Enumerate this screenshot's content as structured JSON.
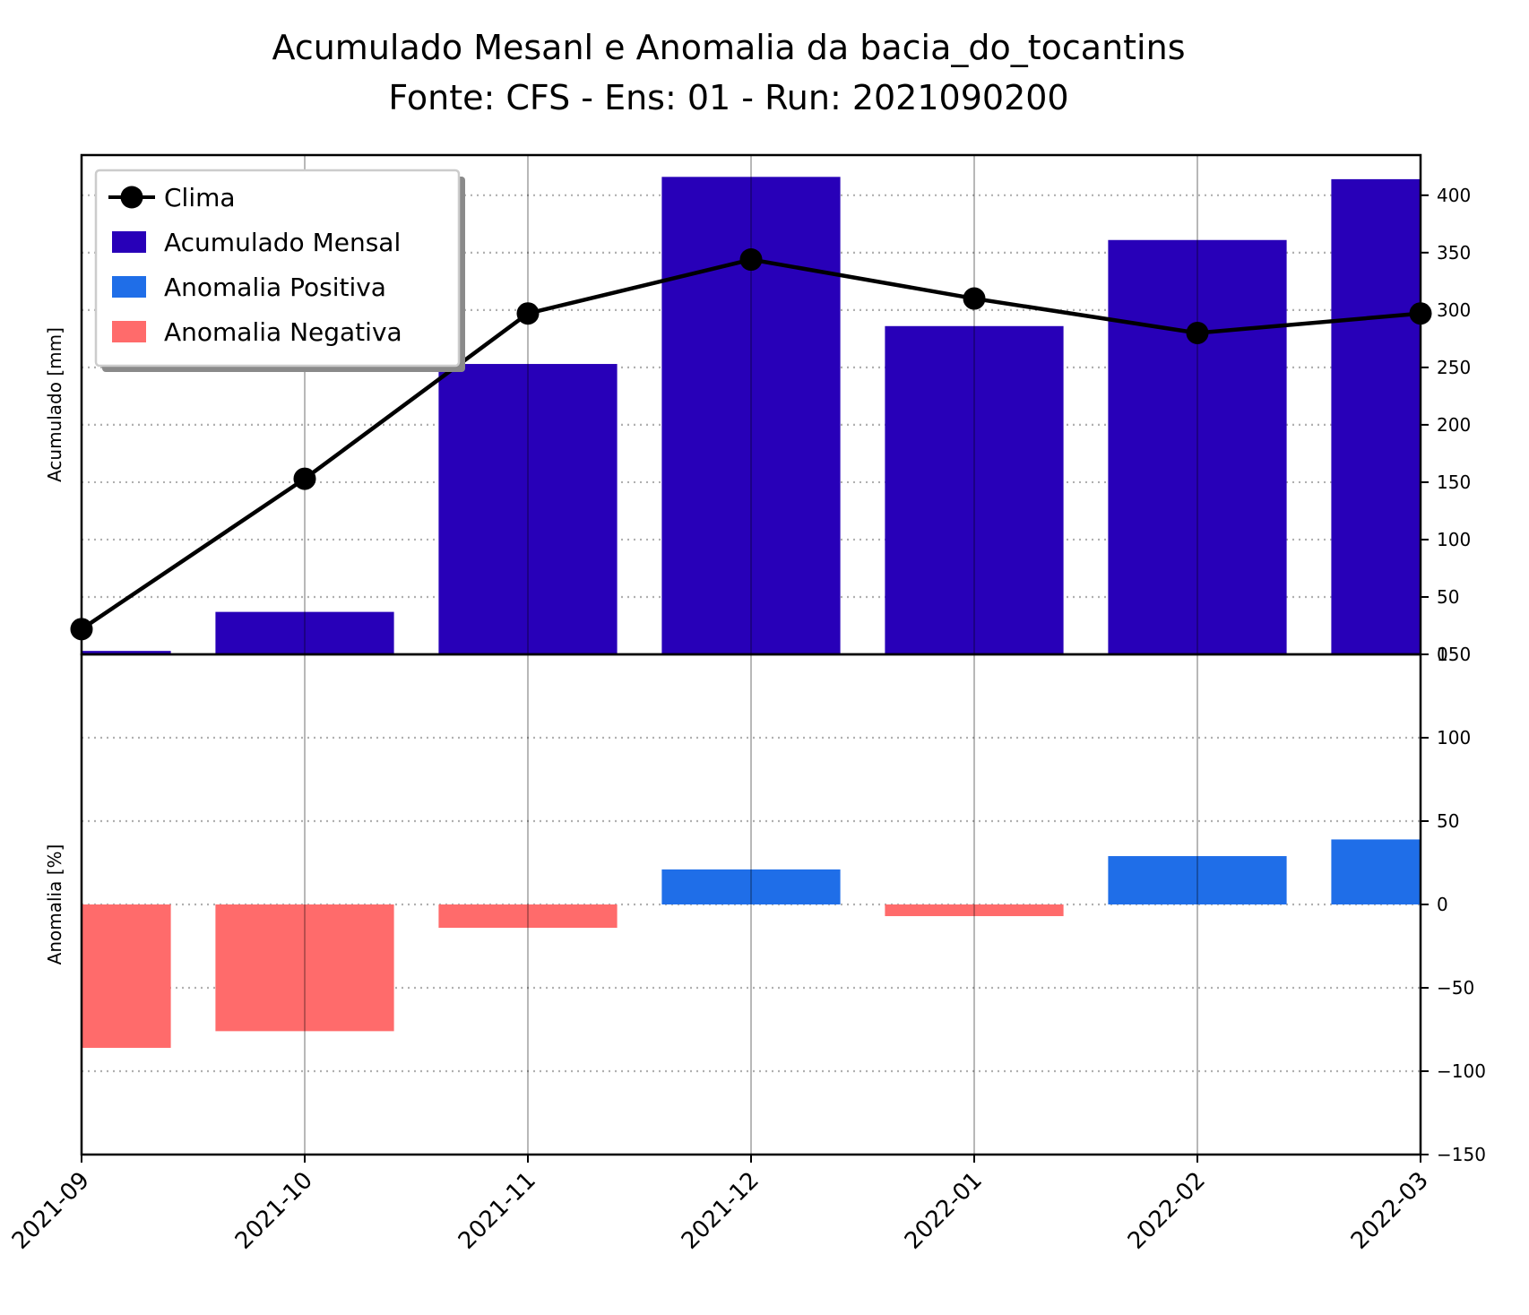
{
  "title_line1": "Acumulado Mesanl e Anomalia da bacia_do_tocantins",
  "title_line2": "Fonte: CFS - Ens: 01 - Run: 2021090200",
  "colors": {
    "acumulado": "#2800b8",
    "positiva": "#1f6ee8",
    "negativa": "#ff6b6b",
    "clima": "#000000"
  },
  "chart_data": [
    {
      "type": "bar",
      "panel": "top",
      "ylabel": "Acumulado [mm]",
      "ylim": [
        0,
        435
      ],
      "yticks": [
        0,
        50,
        100,
        150,
        200,
        250,
        300,
        350,
        400
      ],
      "grid": "horizontal dotted",
      "legend_placement": "top-left",
      "categories": [
        "2021-09",
        "2021-10",
        "2021-11",
        "2021-12",
        "2022-01",
        "2022-02",
        "2022-03"
      ],
      "series": [
        {
          "name": "Acumulado Mensal",
          "kind": "bar",
          "values": [
            3,
            37,
            253,
            416,
            286,
            361,
            414
          ]
        },
        {
          "name": "Clima",
          "kind": "line",
          "values": [
            22,
            153,
            297,
            344,
            310,
            280,
            297
          ]
        }
      ]
    },
    {
      "type": "bar",
      "panel": "bottom",
      "ylabel": "Anomalia [%]",
      "ylim": [
        -150,
        150
      ],
      "yticks": [
        -150,
        -100,
        -50,
        0,
        50,
        100,
        150
      ],
      "grid": "horizontal dotted",
      "categories": [
        "2021-09",
        "2021-10",
        "2021-11",
        "2021-12",
        "2022-01",
        "2022-02",
        "2022-03"
      ],
      "series": [
        {
          "name": "Anomalia",
          "kind": "bar",
          "values": [
            -86,
            -76,
            -14,
            21,
            -7,
            29,
            39
          ]
        }
      ],
      "legend": [
        "Anomalia Positiva",
        "Anomalia Negativa"
      ]
    }
  ],
  "legend_entries": [
    "Clima",
    "Acumulado Mensal",
    "Anomalia Positiva",
    "Anomalia Negativa"
  ]
}
